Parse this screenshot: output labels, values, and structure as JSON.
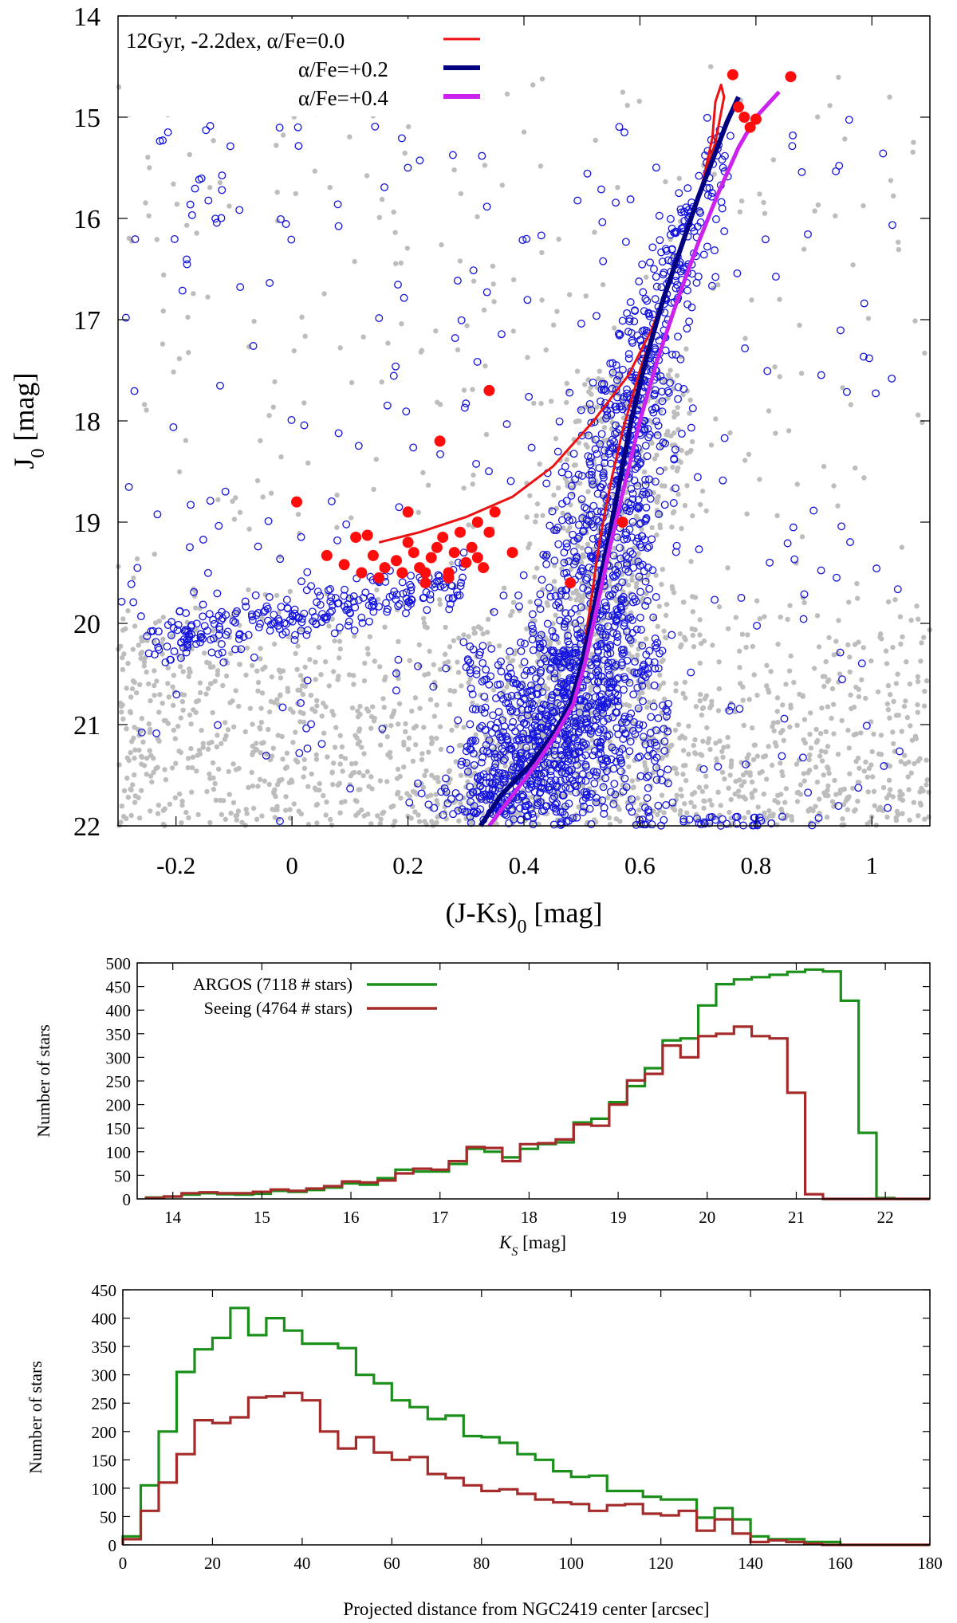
{
  "chart_data": [
    {
      "type": "scatter",
      "title": "",
      "xlabel": "(J-Ks)",
      "xlabel_sub": "0",
      "xlabel_unit": " [mag]",
      "ylabel": "J",
      "ylabel_sub": "0",
      "ylabel_unit": " [mag]",
      "xlim": [
        -0.3,
        1.1
      ],
      "ylim": [
        22,
        14
      ],
      "y_inverted": true,
      "xticks": [
        -0.2,
        0,
        0.2,
        0.4,
        0.6,
        0.8,
        1
      ],
      "xtick_labels": [
        "-0.2",
        "0",
        "0.2",
        "0.4",
        "0.6",
        "0.8",
        "1"
      ],
      "yticks": [
        14,
        15,
        16,
        17,
        18,
        19,
        20,
        21,
        22
      ],
      "ytick_labels": [
        "14",
        "15",
        "16",
        "17",
        "18",
        "19",
        "20",
        "21",
        "22"
      ],
      "grid": false,
      "legend_position": "top-left",
      "legend": [
        {
          "label": "12Gyr, -2.2dex, α/Fe=0.0",
          "color": "#ee1111"
        },
        {
          "label": "α/Fe=+0.2",
          "color": "#000080"
        },
        {
          "label": "α/Fe=+0.4",
          "color": "#cc22ee"
        }
      ],
      "isochrones": [
        {
          "name": "α/Fe=0.0",
          "color": "#ee1111",
          "points": [
            [
              0.325,
              22.0
            ],
            [
              0.36,
              21.7
            ],
            [
              0.41,
              21.4
            ],
            [
              0.45,
              21.1
            ],
            [
              0.48,
              20.8
            ],
            [
              0.5,
              20.4
            ],
            [
              0.51,
              20.0
            ],
            [
              0.52,
              19.6
            ],
            [
              0.53,
              19.2
            ],
            [
              0.55,
              18.6
            ],
            [
              0.57,
              18.1
            ],
            [
              0.6,
              17.5
            ],
            [
              0.63,
              17.0
            ],
            [
              0.66,
              16.5
            ],
            [
              0.69,
              16.0
            ],
            [
              0.71,
              15.6
            ],
            [
              0.725,
              15.2
            ],
            [
              0.73,
              14.85
            ],
            [
              0.74,
              14.68
            ],
            [
              0.745,
              14.8
            ],
            [
              0.73,
              15.25
            ],
            [
              0.7,
              15.8
            ],
            [
              0.66,
              16.5
            ],
            [
              0.62,
              17.1
            ],
            [
              0.58,
              17.55
            ],
            [
              0.52,
              18.0
            ],
            [
              0.45,
              18.45
            ],
            [
              0.38,
              18.75
            ],
            [
              0.3,
              18.95
            ],
            [
              0.22,
              19.1
            ],
            [
              0.15,
              19.2
            ]
          ]
        },
        {
          "name": "α/Fe=+0.2",
          "color": "#000080",
          "points": [
            [
              0.325,
              22.0
            ],
            [
              0.36,
              21.7
            ],
            [
              0.41,
              21.4
            ],
            [
              0.45,
              21.1
            ],
            [
              0.48,
              20.8
            ],
            [
              0.5,
              20.4
            ],
            [
              0.515,
              20.0
            ],
            [
              0.53,
              19.6
            ],
            [
              0.545,
              19.2
            ],
            [
              0.565,
              18.6
            ],
            [
              0.585,
              18.0
            ],
            [
              0.61,
              17.4
            ],
            [
              0.64,
              16.8
            ],
            [
              0.67,
              16.3
            ],
            [
              0.7,
              15.8
            ],
            [
              0.73,
              15.35
            ],
            [
              0.75,
              15.05
            ],
            [
              0.77,
              14.8
            ]
          ]
        },
        {
          "name": "α/Fe=+0.4",
          "color": "#cc22ee",
          "points": [
            [
              0.34,
              22.0
            ],
            [
              0.38,
              21.7
            ],
            [
              0.42,
              21.4
            ],
            [
              0.455,
              21.1
            ],
            [
              0.485,
              20.8
            ],
            [
              0.505,
              20.4
            ],
            [
              0.52,
              20.0
            ],
            [
              0.535,
              19.6
            ],
            [
              0.55,
              19.2
            ],
            [
              0.575,
              18.6
            ],
            [
              0.6,
              18.0
            ],
            [
              0.63,
              17.4
            ],
            [
              0.665,
              16.8
            ],
            [
              0.7,
              16.25
            ],
            [
              0.735,
              15.75
            ],
            [
              0.77,
              15.3
            ],
            [
              0.8,
              15.0
            ],
            [
              0.84,
              14.75
            ]
          ]
        }
      ],
      "rgb_core": [
        [
          0.36,
          21.9
        ],
        [
          0.42,
          21.5
        ],
        [
          0.47,
          21.0
        ],
        [
          0.5,
          20.5
        ],
        [
          0.515,
          20.0
        ],
        [
          0.53,
          19.5
        ],
        [
          0.545,
          19.0
        ],
        [
          0.56,
          18.5
        ],
        [
          0.58,
          18.0
        ],
        [
          0.6,
          17.5
        ],
        [
          0.63,
          17.0
        ],
        [
          0.66,
          16.5
        ],
        [
          0.69,
          16.0
        ],
        [
          0.72,
          15.5
        ],
        [
          0.75,
          15.0
        ]
      ],
      "hb_blue_points": [
        [
          -0.2,
          20.1
        ],
        [
          -0.15,
          20.3
        ],
        [
          -0.1,
          20.2
        ],
        [
          -0.05,
          20.0
        ],
        [
          0.0,
          20.1
        ],
        [
          0.03,
          20.2
        ],
        [
          0.06,
          19.95
        ],
        [
          0.09,
          19.8
        ],
        [
          0.12,
          19.7
        ],
        [
          0.15,
          19.6
        ],
        [
          -0.12,
          19.95
        ],
        [
          -0.02,
          20.35
        ],
        [
          0.05,
          20.3
        ]
      ],
      "red_points": [
        [
          0.008,
          18.8
        ],
        [
          0.06,
          19.33
        ],
        [
          0.09,
          19.42
        ],
        [
          0.11,
          19.15
        ],
        [
          0.12,
          19.5
        ],
        [
          0.13,
          19.13
        ],
        [
          0.14,
          19.33
        ],
        [
          0.15,
          19.55
        ],
        [
          0.18,
          19.38
        ],
        [
          0.19,
          19.5
        ],
        [
          0.2,
          19.2
        ],
        [
          0.21,
          19.3
        ],
        [
          0.22,
          19.45
        ],
        [
          0.23,
          19.6
        ],
        [
          0.24,
          19.35
        ],
        [
          0.25,
          19.25
        ],
        [
          0.26,
          19.15
        ],
        [
          0.27,
          19.5
        ],
        [
          0.28,
          19.3
        ],
        [
          0.29,
          19.1
        ],
        [
          0.3,
          19.4
        ],
        [
          0.31,
          19.25
        ],
        [
          0.32,
          19.0
        ],
        [
          0.33,
          19.45
        ],
        [
          0.34,
          19.1
        ],
        [
          0.35,
          18.9
        ],
        [
          0.2,
          18.9
        ],
        [
          0.255,
          18.2
        ],
        [
          0.34,
          17.7
        ],
        [
          0.38,
          19.3
        ],
        [
          0.48,
          19.6
        ],
        [
          0.57,
          19.0
        ],
        [
          0.76,
          14.58
        ],
        [
          0.77,
          14.9
        ],
        [
          0.78,
          15.0
        ],
        [
          0.79,
          15.1
        ],
        [
          0.8,
          15.02
        ],
        [
          0.86,
          14.6
        ],
        [
          0.16,
          19.45
        ],
        [
          0.23,
          19.5
        ],
        [
          0.27,
          19.55
        ],
        [
          0.32,
          19.35
        ]
      ]
    },
    {
      "type": "line",
      "title": "",
      "xlabel": "K",
      "xlabel_sub": "S",
      "xlabel_unit": " [mag]",
      "ylabel": "Number of stars",
      "xlim": [
        13.6,
        22.5
      ],
      "ylim": [
        0,
        500
      ],
      "xticks": [
        14,
        15,
        16,
        17,
        18,
        19,
        20,
        21,
        22
      ],
      "xtick_labels": [
        "14",
        "15",
        "16",
        "17",
        "18",
        "19",
        "20",
        "21",
        "22"
      ],
      "yticks": [
        0,
        50,
        100,
        150,
        200,
        250,
        300,
        350,
        400,
        450,
        500
      ],
      "ytick_labels": [
        "0",
        "50",
        "100",
        "150",
        "200",
        "250",
        "300",
        "350",
        "400",
        "450",
        "500"
      ],
      "legend_position": "top-left",
      "bin_edges": [
        13.7,
        13.9,
        14.1,
        14.3,
        14.5,
        14.7,
        14.9,
        15.1,
        15.3,
        15.5,
        15.7,
        15.9,
        16.1,
        16.3,
        16.5,
        16.7,
        16.9,
        17.1,
        17.3,
        17.5,
        17.7,
        17.9,
        18.1,
        18.3,
        18.5,
        18.7,
        18.9,
        19.1,
        19.3,
        19.5,
        19.7,
        19.9,
        20.1,
        20.3,
        20.5,
        20.7,
        20.9,
        21.1,
        21.3,
        21.5,
        21.7,
        21.9,
        22.1,
        22.3,
        22.5
      ],
      "series": [
        {
          "name": "ARGOS (7118 # stars)",
          "color": "#1a8f1a",
          "values": [
            3,
            5,
            9,
            12,
            10,
            9,
            11,
            17,
            15,
            19,
            24,
            33,
            30,
            44,
            62,
            58,
            58,
            74,
            106,
            100,
            88,
            106,
            116,
            120,
            162,
            170,
            205,
            239,
            277,
            336,
            340,
            410,
            455,
            465,
            470,
            475,
            481,
            486,
            482,
            420,
            140,
            2,
            0,
            0
          ]
        },
        {
          "name": "Seeing (4764 # stars)",
          "color": "#a52a2a",
          "values": [
            2,
            5,
            12,
            14,
            12,
            12,
            15,
            20,
            17,
            22,
            27,
            37,
            35,
            39,
            54,
            64,
            62,
            80,
            110,
            108,
            80,
            116,
            118,
            126,
            158,
            155,
            200,
            251,
            265,
            325,
            300,
            345,
            350,
            365,
            345,
            340,
            225,
            10,
            0,
            0,
            0,
            0,
            0,
            0
          ]
        }
      ]
    },
    {
      "type": "line",
      "title": "",
      "xlabel": "Projected distance from NGC2419 center [arcsec]",
      "ylabel": "Number of stars",
      "xlim": [
        0,
        180
      ],
      "ylim": [
        0,
        450
      ],
      "xticks": [
        0,
        20,
        40,
        60,
        80,
        100,
        120,
        140,
        160,
        180
      ],
      "xtick_labels": [
        "0",
        "20",
        "40",
        "60",
        "80",
        "100",
        "120",
        "140",
        "160",
        "180"
      ],
      "yticks": [
        0,
        50,
        100,
        150,
        200,
        250,
        300,
        350,
        400,
        450
      ],
      "ytick_labels": [
        "0",
        "50",
        "100",
        "150",
        "200",
        "250",
        "300",
        "350",
        "400",
        "450"
      ],
      "bin_width": 4,
      "series": [
        {
          "name": "ARGOS",
          "color": "#1a8f1a",
          "values": [
            15,
            105,
            200,
            305,
            345,
            365,
            418,
            370,
            400,
            378,
            355,
            355,
            347,
            300,
            285,
            255,
            243,
            222,
            228,
            192,
            190,
            180,
            160,
            150,
            130,
            120,
            122,
            95,
            95,
            85,
            80,
            80,
            48,
            65,
            45,
            15,
            10,
            10,
            5,
            5,
            0,
            0,
            0,
            0,
            0
          ]
        },
        {
          "name": "Seeing",
          "color": "#a52a2a",
          "values": [
            10,
            60,
            110,
            160,
            220,
            215,
            225,
            260,
            262,
            268,
            255,
            200,
            170,
            190,
            163,
            150,
            155,
            125,
            118,
            105,
            95,
            98,
            90,
            80,
            75,
            72,
            60,
            70,
            72,
            55,
            52,
            60,
            25,
            45,
            20,
            5,
            8,
            5,
            2,
            0,
            0,
            0,
            0,
            0,
            0
          ]
        }
      ]
    }
  ]
}
